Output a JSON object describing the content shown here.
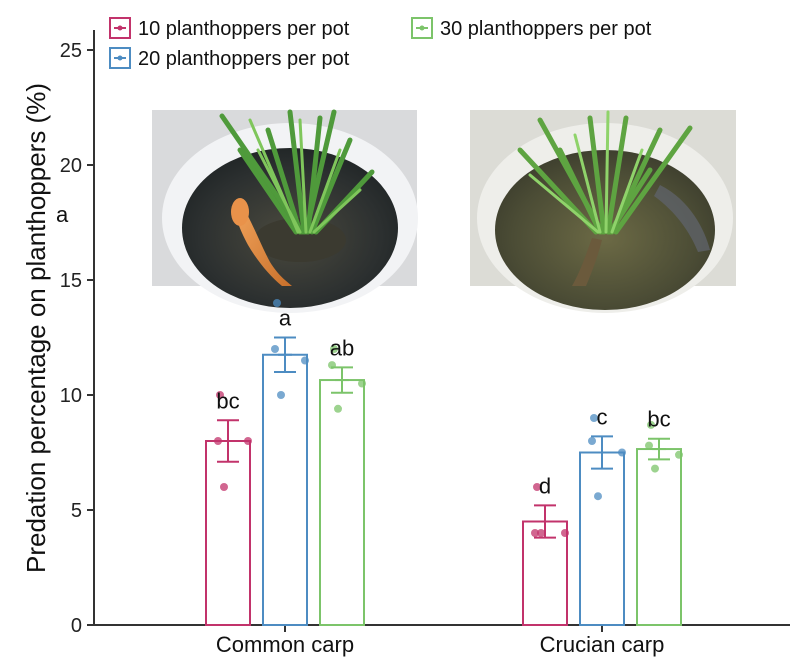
{
  "chart_data": {
    "type": "bar",
    "title": "",
    "xlabel": "",
    "ylabel": "Predation percentage on planthoppers (%)",
    "ylim": [
      0,
      25
    ],
    "yticks": [
      0,
      5,
      10,
      15,
      20,
      25
    ],
    "grid": false,
    "legend_position": "top-left",
    "categories": [
      "Common carp",
      "Crucian carp"
    ],
    "series": [
      {
        "name": "10 planthoppers per pot",
        "color": "#c2336b",
        "values": [
          8.0,
          4.5
        ],
        "errors": [
          0.9,
          0.7
        ],
        "points": [
          [
            10.0,
            8.0,
            8.0,
            6.0
          ],
          [
            6.0,
            4.0,
            4.0,
            4.0
          ]
        ],
        "letters": [
          "bc",
          "d"
        ]
      },
      {
        "name": "20 planthoppers per pot",
        "color": "#4d8cc2",
        "values": [
          11.75,
          7.5
        ],
        "errors": [
          0.75,
          0.7
        ],
        "points": [
          [
            14.0,
            12.0,
            11.5,
            10.0
          ],
          [
            9.0,
            8.0,
            7.5,
            5.6
          ]
        ],
        "letters": [
          "a",
          "c"
        ]
      },
      {
        "name": "30 planthoppers per pot",
        "color": "#7cc46a",
        "values": [
          10.65,
          7.65
        ],
        "errors": [
          0.55,
          0.45
        ],
        "points": [
          [
            12.0,
            11.3,
            10.5,
            9.4
          ],
          [
            8.7,
            7.8,
            7.4,
            6.8
          ]
        ],
        "letters": [
          "ab",
          "bc"
        ]
      }
    ],
    "annotations": [
      "a"
    ]
  },
  "photos": [
    {
      "icon": "photo-common-carp-in-pot-icon"
    },
    {
      "icon": "photo-crucian-carp-in-pot-icon"
    }
  ]
}
